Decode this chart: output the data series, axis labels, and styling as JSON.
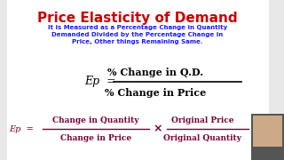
{
  "title": "Price Elasticity of Demand",
  "title_color": "#cc0000",
  "subtitle_line1": "It is Measured as a Percentage Change in Quantity",
  "subtitle_line2": "Demanded Divided by the Percentage Change in",
  "subtitle_line3": "Price, Other things Remaining Same.",
  "subtitle_color": "#1a1aff",
  "formula1_num": "% Change in Q.D.",
  "formula1_den": "% Change in Price",
  "formula2_num1": "Change in Quantity",
  "formula2_den1": "Change in Price",
  "formula2_cross": "×",
  "formula2_num2": "Original Price",
  "formula2_den2": "Original Quantity",
  "bg_color": "#e8e8e8",
  "formula1_color": "#000000",
  "formula2_color": "#7a0033",
  "ep_color": "#000000"
}
